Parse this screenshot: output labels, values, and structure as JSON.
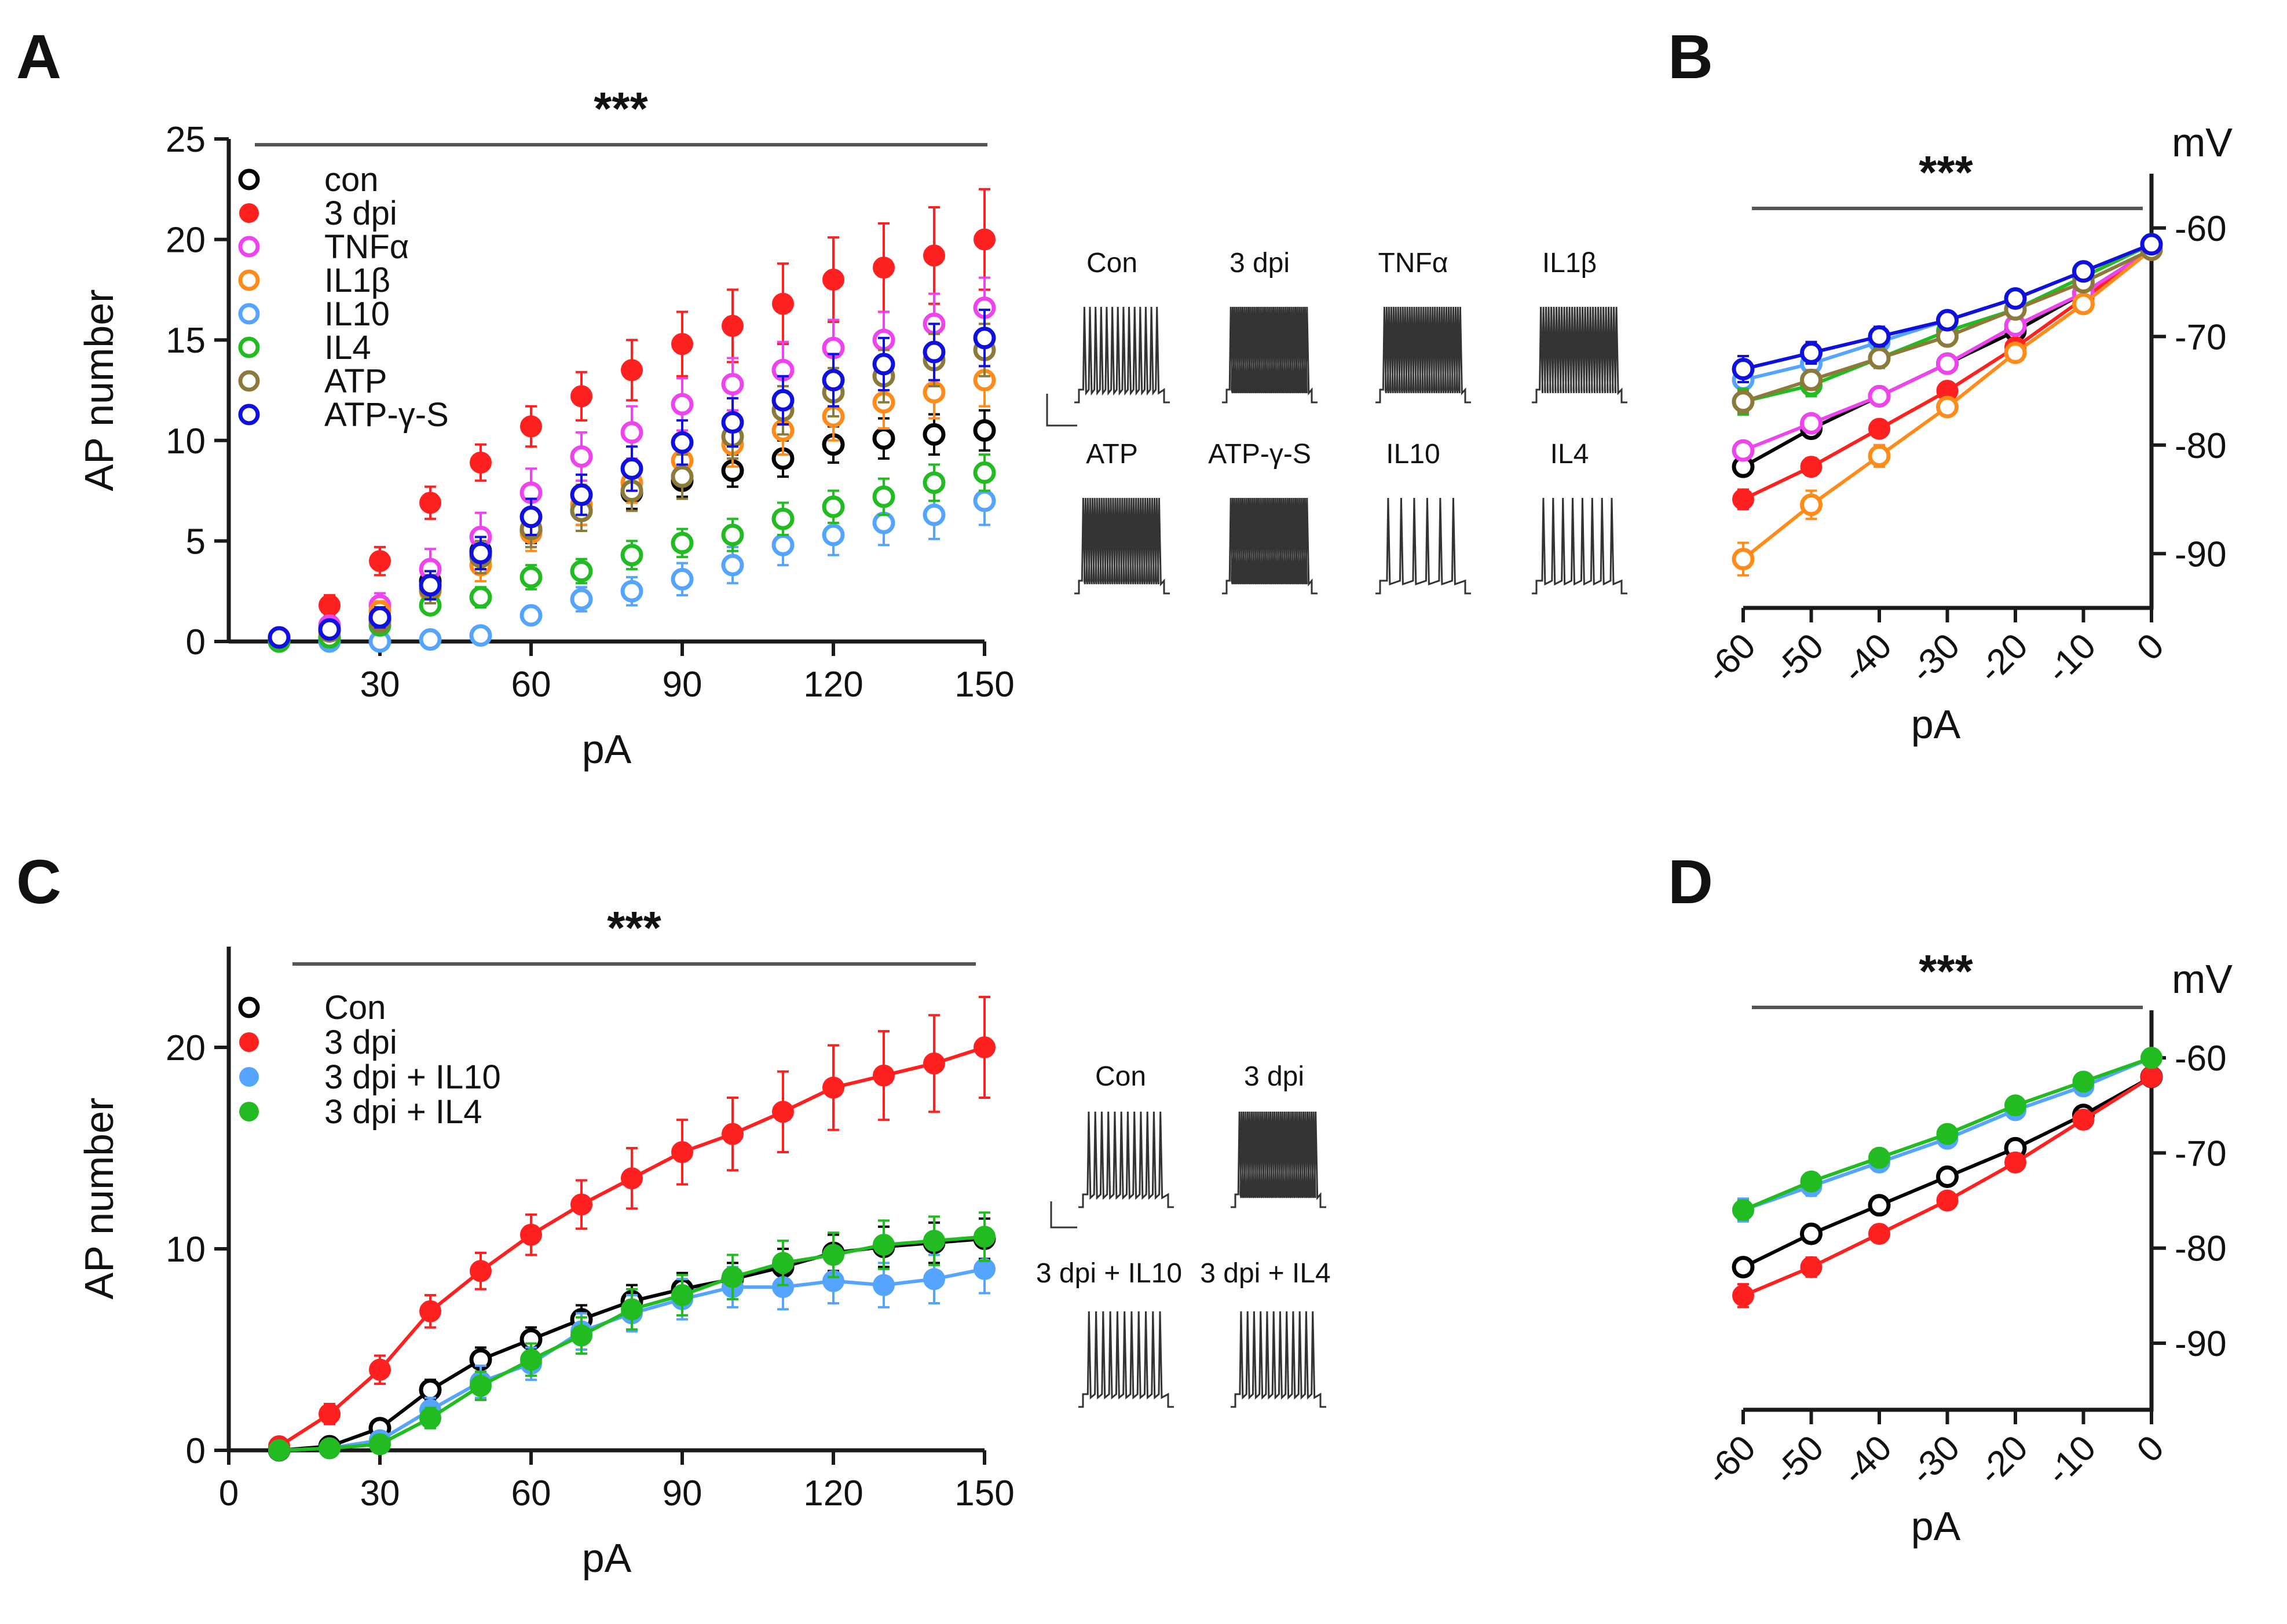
{
  "colors": {
    "con": "#000000",
    "dpi3": "#ff2020",
    "tnf": "#ee44ee",
    "il1b": "#ff8c1a",
    "il10": "#55a5ff",
    "il4": "#22bb22",
    "atp": "#8b7a3a",
    "atpgs": "#1010dd",
    "axis": "#1a1a1a",
    "trace": "#333333",
    "sig_line": "#555555"
  },
  "panels": {
    "A": {
      "letter": "A",
      "significance": "***"
    },
    "B": {
      "letter": "B",
      "significance": "***"
    },
    "C": {
      "letter": "C",
      "significance": "***"
    },
    "D": {
      "letter": "D",
      "significance": "***"
    }
  },
  "traces_A": {
    "labels_top": [
      "Con",
      "3 dpi",
      "TNFα",
      "IL1β"
    ],
    "labels_bottom": [
      "ATP",
      "ATP-γ-S",
      "IL10",
      "IL4"
    ]
  },
  "traces_C": {
    "labels_top": [
      "Con",
      "3 dpi"
    ],
    "labels_bottom": [
      "3 dpi + IL10",
      "3 dpi + IL4"
    ]
  },
  "chart_data": [
    {
      "panel": "A",
      "type": "scatter",
      "xlabel": "pA",
      "ylabel": "AP number",
      "xlim": [
        0,
        150
      ],
      "ylim": [
        0,
        25
      ],
      "xticks": [
        30,
        60,
        90,
        120,
        150
      ],
      "yticks": [
        0,
        5,
        10,
        15,
        20,
        25
      ],
      "x": [
        10,
        20,
        30,
        40,
        50,
        60,
        70,
        80,
        90,
        100,
        110,
        120,
        130,
        140,
        150
      ],
      "series": [
        {
          "name": "con",
          "key": "con",
          "filled": false,
          "values": [
            0,
            0.2,
            1.1,
            3.0,
            4.5,
            5.5,
            6.5,
            7.4,
            8.0,
            8.5,
            9.1,
            9.8,
            10.1,
            10.3,
            10.5
          ],
          "err": [
            0.1,
            0.2,
            0.4,
            0.5,
            0.6,
            0.6,
            0.7,
            0.8,
            0.8,
            0.8,
            0.9,
            0.9,
            1.0,
            1.0,
            1.0
          ]
        },
        {
          "name": "3 dpi",
          "key": "dpi3",
          "filled": true,
          "values": [
            0.2,
            1.8,
            4.0,
            6.9,
            8.9,
            10.7,
            12.2,
            13.5,
            14.8,
            15.7,
            16.8,
            18.0,
            18.6,
            19.2,
            20.0
          ],
          "err": [
            0.2,
            0.5,
            0.7,
            0.8,
            0.9,
            1.0,
            1.2,
            1.5,
            1.6,
            1.8,
            2.0,
            2.1,
            2.2,
            2.4,
            2.5
          ]
        },
        {
          "name": "TNFα",
          "key": "tnf",
          "filled": false,
          "values": [
            0.2,
            0.8,
            1.8,
            3.6,
            5.2,
            7.4,
            9.2,
            10.4,
            11.8,
            12.8,
            13.5,
            14.6,
            15.0,
            15.8,
            16.6
          ],
          "err": [
            0.2,
            0.4,
            0.6,
            1.0,
            1.2,
            1.2,
            1.2,
            1.3,
            1.3,
            1.3,
            1.4,
            1.4,
            1.4,
            1.5,
            1.5
          ]
        },
        {
          "name": "IL1β",
          "key": "il1b",
          "filled": false,
          "values": [
            0.2,
            0.6,
            1.5,
            2.5,
            3.8,
            5.4,
            6.8,
            7.9,
            9.0,
            9.8,
            10.5,
            11.2,
            11.9,
            12.4,
            13.0
          ],
          "err": [
            0.2,
            0.3,
            0.5,
            0.7,
            0.8,
            0.9,
            1.0,
            1.0,
            1.1,
            1.1,
            1.2,
            1.2,
            1.3,
            1.3,
            1.3
          ]
        },
        {
          "name": "IL10",
          "key": "il10",
          "filled": false,
          "values": [
            0,
            0,
            0,
            0.1,
            0.3,
            1.3,
            2.1,
            2.5,
            3.1,
            3.8,
            4.8,
            5.3,
            5.9,
            6.3,
            7.0
          ],
          "err": [
            0,
            0,
            0,
            0.1,
            0.2,
            0.4,
            0.6,
            0.7,
            0.8,
            0.9,
            1.0,
            1.0,
            1.1,
            1.2,
            1.2
          ]
        },
        {
          "name": "IL4",
          "key": "il4",
          "filled": false,
          "values": [
            0,
            0.2,
            0.8,
            1.8,
            2.2,
            3.2,
            3.5,
            4.3,
            4.9,
            5.3,
            6.1,
            6.7,
            7.2,
            7.9,
            8.4
          ],
          "err": [
            0,
            0.2,
            0.3,
            0.4,
            0.5,
            0.6,
            0.6,
            0.7,
            0.7,
            0.8,
            0.8,
            0.8,
            0.9,
            0.9,
            0.9
          ]
        },
        {
          "name": "ATP",
          "key": "atp",
          "filled": false,
          "values": [
            0.2,
            0.5,
            1.0,
            2.6,
            4.2,
            5.6,
            6.5,
            7.5,
            8.2,
            10.2,
            11.5,
            12.4,
            13.2,
            14.0,
            14.5
          ],
          "err": [
            0.2,
            0.3,
            0.5,
            0.7,
            0.8,
            0.9,
            1.0,
            1.0,
            1.1,
            1.1,
            1.2,
            1.2,
            1.3,
            1.3,
            1.3
          ]
        },
        {
          "name": "ATP-γ-S",
          "key": "atpgs",
          "filled": false,
          "values": [
            0.2,
            0.6,
            1.2,
            2.8,
            4.4,
            6.2,
            7.3,
            8.6,
            9.9,
            10.9,
            12.0,
            13.0,
            13.8,
            14.4,
            15.1
          ],
          "err": [
            0.2,
            0.3,
            0.5,
            0.7,
            0.8,
            0.9,
            1.0,
            1.1,
            1.1,
            1.2,
            1.2,
            1.3,
            1.3,
            1.4,
            1.4
          ]
        }
      ]
    },
    {
      "panel": "B",
      "type": "line",
      "xlabel": "pA",
      "ylabel": "mV",
      "xlim": [
        -60,
        0
      ],
      "ylim": [
        -95,
        -55
      ],
      "xticks": [
        -60,
        -50,
        -40,
        -30,
        -20,
        -10,
        0
      ],
      "yticks": [
        -60,
        -70,
        -80,
        -90
      ],
      "x": [
        -60,
        -50,
        -40,
        -30,
        -20,
        -10,
        0
      ],
      "series": [
        {
          "name": "con",
          "key": "con",
          "filled": false,
          "values": [
            -82.0,
            -78.5,
            -75.5,
            -72.5,
            -69.5,
            -66.0,
            -62.0
          ],
          "err": [
            0.8,
            0.8,
            0.7,
            0.6,
            0.5,
            0.4,
            0.3
          ]
        },
        {
          "name": "3 dpi",
          "key": "dpi3",
          "filled": true,
          "values": [
            -85.0,
            -82.0,
            -78.5,
            -75.0,
            -71.0,
            -66.5,
            -62.0
          ],
          "err": [
            0.9,
            0.8,
            0.7,
            0.6,
            0.5,
            0.4,
            0.3
          ]
        },
        {
          "name": "TNFα",
          "key": "tnf",
          "filled": false,
          "values": [
            -80.5,
            -78.0,
            -75.5,
            -72.5,
            -69.0,
            -66.0,
            -62.0
          ],
          "err": [
            0.8,
            0.8,
            0.7,
            0.6,
            0.5,
            0.4,
            0.3
          ]
        },
        {
          "name": "IL1β",
          "key": "il1b",
          "filled": false,
          "values": [
            -90.5,
            -85.5,
            -81.0,
            -76.5,
            -71.5,
            -67.0,
            -62.0
          ],
          "err": [
            1.5,
            1.3,
            1.0,
            0.8,
            0.6,
            0.5,
            0.3
          ]
        },
        {
          "name": "IL10",
          "key": "il10",
          "filled": false,
          "values": [
            -74.0,
            -72.5,
            -70.5,
            -68.5,
            -66.5,
            -64.0,
            -61.5
          ],
          "err": [
            1.0,
            0.9,
            0.8,
            0.7,
            0.6,
            0.5,
            0.3
          ]
        },
        {
          "name": "IL4",
          "key": "il4",
          "filled": false,
          "values": [
            -76.0,
            -74.5,
            -72.0,
            -69.5,
            -67.5,
            -64.5,
            -61.5
          ],
          "err": [
            1.2,
            1.0,
            0.9,
            0.8,
            0.6,
            0.5,
            0.3
          ]
        },
        {
          "name": "ATP",
          "key": "atp",
          "filled": false,
          "values": [
            -76.0,
            -74.0,
            -72.0,
            -70.0,
            -67.5,
            -65.0,
            -62.0
          ],
          "err": [
            1.0,
            0.9,
            0.8,
            0.7,
            0.6,
            0.5,
            0.3
          ]
        },
        {
          "name": "ATP-γ-S",
          "key": "atpgs",
          "filled": false,
          "values": [
            -73.0,
            -71.5,
            -70.0,
            -68.5,
            -66.5,
            -64.0,
            -61.5
          ],
          "err": [
            1.2,
            1.0,
            0.9,
            0.8,
            0.6,
            0.5,
            0.3
          ]
        }
      ]
    },
    {
      "panel": "C",
      "type": "line",
      "xlabel": "pA",
      "ylabel": "AP number",
      "xlim": [
        0,
        150
      ],
      "ylim": [
        0,
        25
      ],
      "xticks": [
        0,
        30,
        60,
        90,
        120,
        150
      ],
      "yticks": [
        0,
        10,
        20
      ],
      "x": [
        10,
        20,
        30,
        40,
        50,
        60,
        70,
        80,
        90,
        100,
        110,
        120,
        130,
        140,
        150
      ],
      "series": [
        {
          "name": "Con",
          "key": "con",
          "filled": false,
          "values": [
            0,
            0.2,
            1.1,
            3.0,
            4.5,
            5.5,
            6.5,
            7.4,
            8.0,
            8.5,
            9.1,
            9.8,
            10.1,
            10.3,
            10.5
          ],
          "err": [
            0.1,
            0.2,
            0.4,
            0.5,
            0.6,
            0.6,
            0.7,
            0.8,
            0.8,
            0.8,
            0.9,
            0.9,
            1.0,
            1.0,
            1.0
          ]
        },
        {
          "name": "3 dpi",
          "key": "dpi3",
          "filled": true,
          "values": [
            0.2,
            1.8,
            4.0,
            6.9,
            8.9,
            10.7,
            12.2,
            13.5,
            14.8,
            15.7,
            16.8,
            18.0,
            18.6,
            19.2,
            20.0
          ],
          "err": [
            0.2,
            0.5,
            0.7,
            0.8,
            0.9,
            1.0,
            1.2,
            1.5,
            1.6,
            1.8,
            2.0,
            2.1,
            2.2,
            2.4,
            2.5
          ]
        },
        {
          "name": "3 dpi  +  IL10",
          "key": "il10",
          "filled": true,
          "values": [
            0,
            0.1,
            0.5,
            2.0,
            3.4,
            4.3,
            5.9,
            6.8,
            7.5,
            8.1,
            8.1,
            8.4,
            8.2,
            8.5,
            9.0
          ],
          "err": [
            0,
            0.1,
            0.3,
            0.6,
            0.8,
            0.8,
            0.9,
            0.9,
            1.0,
            1.0,
            1.1,
            1.1,
            1.1,
            1.2,
            1.2
          ]
        },
        {
          "name": "3 dpi + IL4",
          "key": "il4",
          "filled": true,
          "values": [
            0,
            0.1,
            0.3,
            1.6,
            3.2,
            4.5,
            5.7,
            7.0,
            7.7,
            8.6,
            9.3,
            9.7,
            10.2,
            10.4,
            10.6
          ],
          "err": [
            0,
            0.1,
            0.3,
            0.5,
            0.7,
            0.8,
            0.9,
            1.0,
            1.0,
            1.1,
            1.1,
            1.1,
            1.2,
            1.2,
            1.2
          ]
        }
      ]
    },
    {
      "panel": "D",
      "type": "line",
      "xlabel": "pA",
      "ylabel": "mV",
      "xlim": [
        -60,
        0
      ],
      "ylim": [
        -97,
        -55
      ],
      "xticks": [
        -60,
        -50,
        -40,
        -30,
        -20,
        -10,
        0
      ],
      "yticks": [
        -60,
        -70,
        -80,
        -90
      ],
      "x": [
        -60,
        -50,
        -40,
        -30,
        -20,
        -10,
        0
      ],
      "series": [
        {
          "name": "Con",
          "key": "con",
          "filled": false,
          "values": [
            -82.0,
            -78.5,
            -75.5,
            -72.5,
            -69.5,
            -66.0,
            -62.0
          ],
          "err": [
            0.8,
            0.8,
            0.7,
            0.6,
            0.5,
            0.4,
            0.3
          ]
        },
        {
          "name": "3 dpi",
          "key": "dpi3",
          "filled": true,
          "values": [
            -85.0,
            -82.0,
            -78.5,
            -75.0,
            -71.0,
            -66.5,
            -62.0
          ],
          "err": [
            1.2,
            1.0,
            0.9,
            0.7,
            0.6,
            0.5,
            0.3
          ]
        },
        {
          "name": "3 dpi  +  IL10",
          "key": "il10",
          "filled": true,
          "values": [
            -76.0,
            -73.5,
            -71.0,
            -68.5,
            -65.5,
            -63.0,
            -60.0
          ],
          "err": [
            1.2,
            1.0,
            0.9,
            0.7,
            0.6,
            0.5,
            0.3
          ]
        },
        {
          "name": "3 dpi + IL4",
          "key": "il4",
          "filled": true,
          "values": [
            -76.0,
            -73.0,
            -70.5,
            -68.0,
            -65.0,
            -62.5,
            -60.0
          ],
          "err": [
            1.0,
            0.9,
            0.8,
            0.7,
            0.6,
            0.5,
            0.3
          ]
        }
      ]
    }
  ]
}
